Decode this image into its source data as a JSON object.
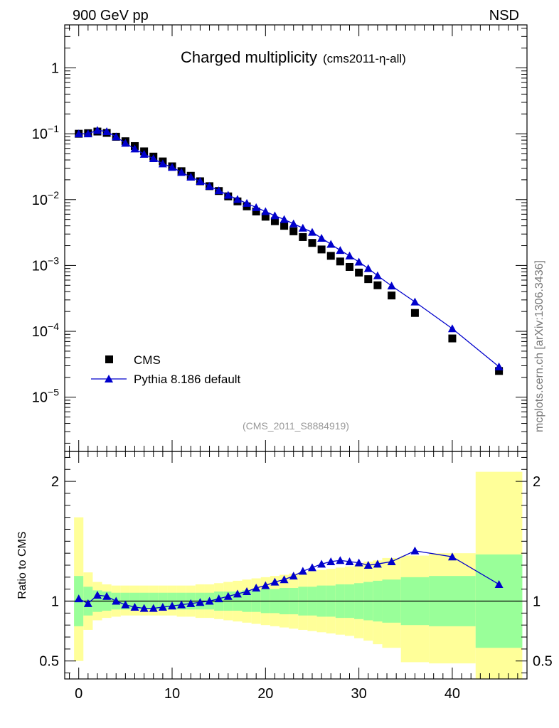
{
  "header": {
    "left": "900 GeV pp",
    "right": "NSD"
  },
  "watermark": "mcplots.cern.ch [arXiv:1306.3436]",
  "colors": {
    "data": "#000000",
    "mc": "#0000cc",
    "band_inner": "#99ff99",
    "band_outer": "#ffff99"
  },
  "chart_data": [
    {
      "type": "scatter",
      "title_main": "Charged multiplicity",
      "title_sub": "(cms2011-η-all)",
      "annotation": "(CMS_2011_S8884919)",
      "log_y": true,
      "xlim": [
        -1.5,
        48
      ],
      "ylim": [
        1.5e-06,
        4.5
      ],
      "y_ticks": [
        {
          "v": 1,
          "label": "1"
        },
        {
          "v": 0.1,
          "base": "10",
          "exp": "−1"
        },
        {
          "v": 0.01,
          "base": "10",
          "exp": "−2"
        },
        {
          "v": 0.001,
          "base": "10",
          "exp": "−3"
        },
        {
          "v": 0.0001,
          "base": "10",
          "exp": "−4"
        },
        {
          "v": 1e-05,
          "base": "10",
          "exp": "−5"
        }
      ],
      "legend": {
        "position": "bottom-left",
        "entries": [
          "CMS",
          "Pythia 8.186 default"
        ]
      },
      "series": [
        {
          "name": "CMS",
          "marker": "square",
          "points": [
            [
              0,
              0.1
            ],
            [
              1,
              0.102
            ],
            [
              2,
              0.108
            ],
            [
              3,
              0.103
            ],
            [
              4,
              0.09
            ],
            [
              5,
              0.077
            ],
            [
              6,
              0.065
            ],
            [
              7,
              0.054
            ],
            [
              8,
              0.045
            ],
            [
              9,
              0.038
            ],
            [
              10,
              0.032
            ],
            [
              11,
              0.027
            ],
            [
              12,
              0.023
            ],
            [
              13,
              0.019
            ],
            [
              14,
              0.016
            ],
            [
              15,
              0.0135
            ],
            [
              16,
              0.0112
            ],
            [
              17,
              0.0094
            ],
            [
              18,
              0.0079
            ],
            [
              19,
              0.0066
            ],
            [
              20,
              0.0055
            ],
            [
              21,
              0.0047
            ],
            [
              22,
              0.004
            ],
            [
              23,
              0.0033
            ],
            [
              24,
              0.0027
            ],
            [
              25,
              0.0022
            ],
            [
              26,
              0.00175
            ],
            [
              27,
              0.0014
            ],
            [
              28,
              0.00115
            ],
            [
              29,
              0.00095
            ],
            [
              30,
              0.00078
            ],
            [
              31,
              0.00062
            ],
            [
              32,
              0.0005
            ],
            [
              33.5,
              0.00035
            ],
            [
              36,
              0.00019
            ],
            [
              40,
              7.8e-05
            ],
            [
              45,
              2.5e-05
            ]
          ]
        },
        {
          "name": "Pythia 8.186 default",
          "marker": "triangle",
          "points": [
            [
              0,
              0.1
            ],
            [
              1,
              0.1
            ],
            [
              2,
              0.113
            ],
            [
              3,
              0.108
            ],
            [
              4,
              0.09
            ],
            [
              5,
              0.072
            ],
            [
              6,
              0.059
            ],
            [
              7,
              0.049
            ],
            [
              8,
              0.042
            ],
            [
              9,
              0.035
            ],
            [
              10,
              0.031
            ],
            [
              11,
              0.026
            ],
            [
              12,
              0.022
            ],
            [
              13,
              0.019
            ],
            [
              14,
              0.016
            ],
            [
              15,
              0.0137
            ],
            [
              16,
              0.0117
            ],
            [
              17,
              0.0101
            ],
            [
              18,
              0.0088
            ],
            [
              19,
              0.0076
            ],
            [
              20,
              0.0066
            ],
            [
              21,
              0.0057
            ],
            [
              22,
              0.005
            ],
            [
              23,
              0.0043
            ],
            [
              24,
              0.0037
            ],
            [
              25,
              0.0032
            ],
            [
              26,
              0.0026
            ],
            [
              27,
              0.0021
            ],
            [
              28,
              0.0017
            ],
            [
              29,
              0.0014
            ],
            [
              30,
              0.00113
            ],
            [
              31,
              0.0009
            ],
            [
              32,
              0.0007
            ],
            [
              33.5,
              0.00049
            ],
            [
              36,
              0.00028
            ],
            [
              40,
              0.00011
            ],
            [
              45,
              2.9e-05
            ]
          ]
        }
      ]
    },
    {
      "type": "scatter",
      "ylabel": "Ratio to CMS",
      "xlim": [
        -1.5,
        48
      ],
      "ylim": [
        0.35,
        2.25
      ],
      "x_ticks": [
        0,
        10,
        20,
        30,
        40
      ],
      "y_ticks": [
        {
          "v": 2,
          "label": "2"
        },
        {
          "v": 1,
          "label": "1"
        },
        {
          "v": 0.5,
          "label": "0.5"
        }
      ],
      "reference_line": 1,
      "uncertainty_bands": [
        [
          -0.5,
          0.5,
          0.79,
          1.21,
          0.5,
          1.7
        ],
        [
          0.5,
          1.5,
          0.88,
          1.12,
          0.76,
          1.24
        ],
        [
          1.5,
          2.5,
          0.91,
          1.09,
          0.84,
          1.16
        ],
        [
          2.5,
          3.5,
          0.92,
          1.08,
          0.86,
          1.14
        ],
        [
          3.5,
          4.5,
          0.93,
          1.07,
          0.87,
          1.13
        ],
        [
          4.5,
          5.5,
          0.93,
          1.07,
          0.88,
          1.13
        ],
        [
          5.5,
          6.5,
          0.93,
          1.07,
          0.88,
          1.13
        ],
        [
          6.5,
          7.5,
          0.93,
          1.07,
          0.88,
          1.13
        ],
        [
          7.5,
          8.5,
          0.93,
          1.07,
          0.88,
          1.13
        ],
        [
          8.5,
          9.5,
          0.93,
          1.07,
          0.88,
          1.13
        ],
        [
          9.5,
          10.5,
          0.93,
          1.07,
          0.88,
          1.13
        ],
        [
          10.5,
          11.5,
          0.93,
          1.07,
          0.87,
          1.13
        ],
        [
          11.5,
          12.5,
          0.93,
          1.07,
          0.87,
          1.13
        ],
        [
          12.5,
          13.5,
          0.93,
          1.07,
          0.86,
          1.14
        ],
        [
          13.5,
          14.5,
          0.93,
          1.07,
          0.86,
          1.14
        ],
        [
          14.5,
          15.5,
          0.92,
          1.08,
          0.85,
          1.15
        ],
        [
          15.5,
          16.5,
          0.92,
          1.08,
          0.84,
          1.16
        ],
        [
          16.5,
          17.5,
          0.92,
          1.08,
          0.83,
          1.17
        ],
        [
          17.5,
          18.5,
          0.91,
          1.09,
          0.82,
          1.18
        ],
        [
          18.5,
          19.5,
          0.91,
          1.09,
          0.81,
          1.19
        ],
        [
          19.5,
          20.5,
          0.9,
          1.1,
          0.8,
          1.2
        ],
        [
          20.5,
          21.5,
          0.9,
          1.1,
          0.79,
          1.21
        ],
        [
          21.5,
          22.5,
          0.89,
          1.11,
          0.78,
          1.22
        ],
        [
          22.5,
          23.5,
          0.89,
          1.11,
          0.77,
          1.23
        ],
        [
          23.5,
          24.5,
          0.88,
          1.12,
          0.76,
          1.24
        ],
        [
          24.5,
          25.5,
          0.88,
          1.12,
          0.75,
          1.25
        ],
        [
          25.5,
          26.5,
          0.87,
          1.13,
          0.74,
          1.26
        ],
        [
          26.5,
          27.5,
          0.87,
          1.13,
          0.73,
          1.27
        ],
        [
          27.5,
          28.5,
          0.86,
          1.14,
          0.72,
          1.28
        ],
        [
          28.5,
          29.5,
          0.86,
          1.14,
          0.71,
          1.29
        ],
        [
          29.5,
          30.5,
          0.85,
          1.15,
          0.69,
          1.31
        ],
        [
          30.5,
          31.5,
          0.84,
          1.16,
          0.67,
          1.33
        ],
        [
          31.5,
          32.5,
          0.83,
          1.17,
          0.64,
          1.34
        ],
        [
          32.5,
          34.5,
          0.82,
          1.18,
          0.61,
          1.36
        ],
        [
          34.5,
          37.5,
          0.8,
          1.2,
          0.49,
          1.38
        ],
        [
          37.5,
          42.5,
          0.79,
          1.21,
          0.48,
          1.4
        ],
        [
          42.5,
          47.5,
          0.61,
          1.39,
          0.3,
          2.08
        ]
      ],
      "series": [
        {
          "name": "Pythia 8.186 default",
          "marker": "triangle",
          "points": [
            [
              0,
              1.02
            ],
            [
              1,
              0.98
            ],
            [
              2,
              1.05
            ],
            [
              3,
              1.04
            ],
            [
              4,
              1.0
            ],
            [
              5,
              0.97
            ],
            [
              6,
              0.95
            ],
            [
              7,
              0.94
            ],
            [
              8,
              0.94
            ],
            [
              9,
              0.95
            ],
            [
              10,
              0.96
            ],
            [
              11,
              0.97
            ],
            [
              12,
              0.98
            ],
            [
              13,
              0.99
            ],
            [
              14,
              1.0
            ],
            [
              15,
              1.02
            ],
            [
              16,
              1.04
            ],
            [
              17,
              1.06
            ],
            [
              18,
              1.08
            ],
            [
              19,
              1.11
            ],
            [
              20,
              1.13
            ],
            [
              21,
              1.16
            ],
            [
              22,
              1.18
            ],
            [
              23,
              1.21
            ],
            [
              24,
              1.25
            ],
            [
              25,
              1.28
            ],
            [
              26,
              1.31
            ],
            [
              27,
              1.33
            ],
            [
              28,
              1.34
            ],
            [
              29,
              1.33
            ],
            [
              30,
              1.32
            ],
            [
              31,
              1.3
            ],
            [
              32,
              1.31
            ],
            [
              33.5,
              1.33
            ],
            [
              36,
              1.42
            ],
            [
              40,
              1.37
            ],
            [
              45,
              1.14
            ]
          ]
        }
      ]
    }
  ]
}
